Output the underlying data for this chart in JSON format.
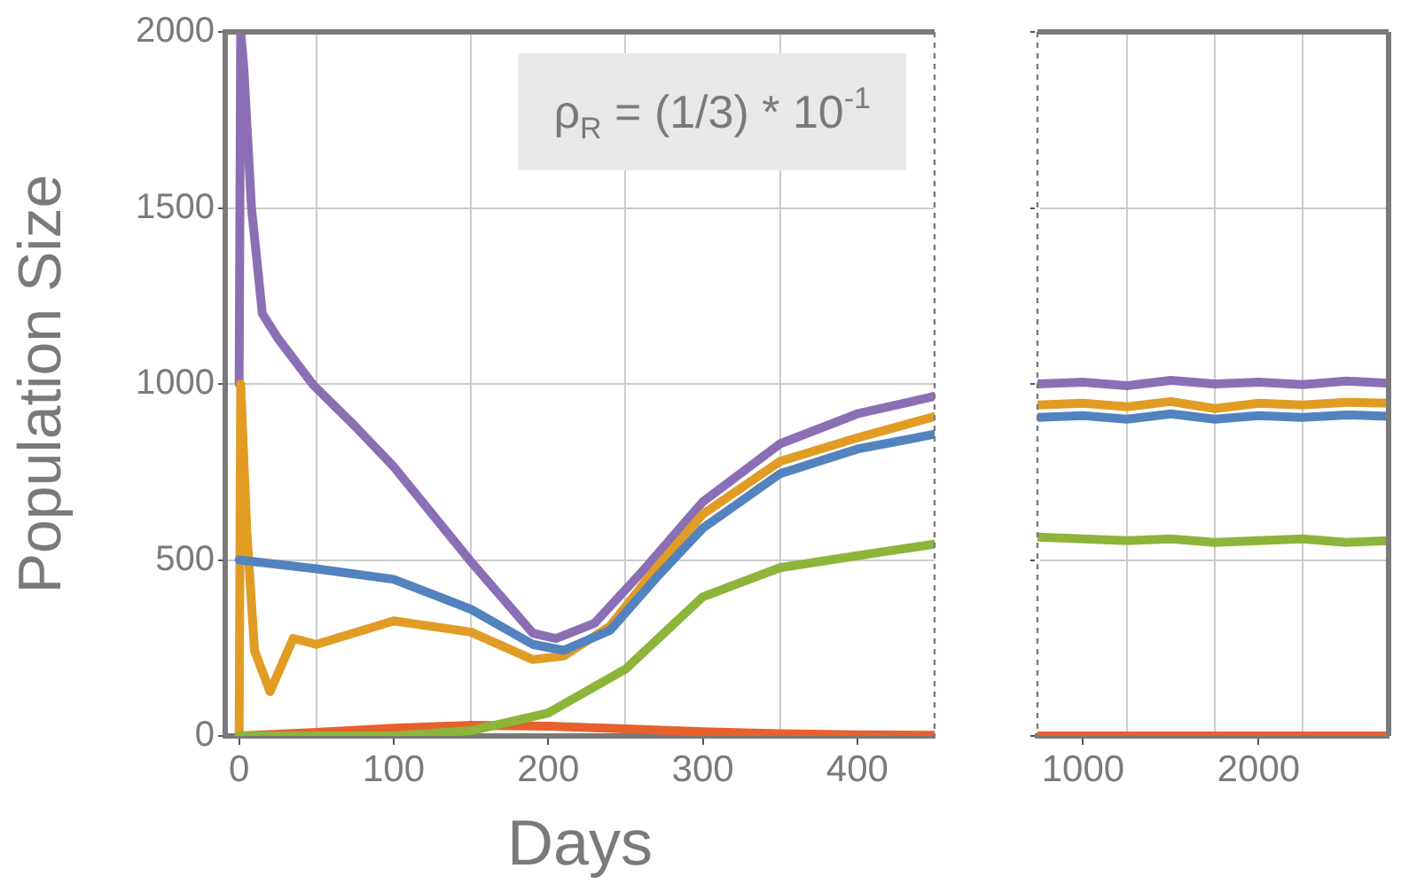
{
  "chart_data": [
    {
      "type": "line",
      "xlabel": "Days",
      "ylabel": "Population Size",
      "annotations": [
        "ρ$_{R}$ = (1/3) * 10$^{-1}$"
      ],
      "xlim": [
        -9,
        450
      ],
      "ylim": [
        0,
        2000
      ],
      "xticks": [
        0,
        {
          "value": 50,
          "label": null
        },
        100,
        {
          "value": 150,
          "label": null
        },
        200,
        {
          "value": 250,
          "label": null
        },
        300,
        {
          "value": 350,
          "label": null
        },
        400
      ],
      "yticks": [
        0,
        500,
        1000,
        1500,
        2000
      ],
      "grid": true,
      "legend": false,
      "marker": "none",
      "line_style": "solid",
      "series": [
        {
          "color": "#5283bf",
          "x": [
            0,
            50,
            100,
            150,
            190,
            210,
            240,
            270,
            300,
            350,
            400,
            450
          ],
          "values": [
            500,
            475,
            445,
            360,
            260,
            243,
            300,
            450,
            590,
            745,
            815,
            857
          ]
        },
        {
          "color": "#8cb53a",
          "x": [
            0,
            100,
            150,
            200,
            250,
            300,
            350,
            400,
            450
          ],
          "values": [
            0,
            0,
            15,
            65,
            190,
            395,
            478,
            512,
            545
          ]
        },
        {
          "color": "#e8612c",
          "x": [
            0,
            50,
            100,
            150,
            200,
            250,
            300,
            350,
            400,
            450
          ],
          "values": [
            0,
            10,
            22,
            30,
            28,
            20,
            12,
            6,
            3,
            2
          ]
        },
        {
          "color": "#e19c24",
          "x": [
            0,
            1,
            5,
            10,
            20,
            35,
            50,
            100,
            150,
            190,
            210,
            240,
            270,
            300,
            350,
            400,
            450
          ],
          "values": [
            0,
            1000,
            580,
            242,
            126,
            277,
            260,
            327,
            295,
            217,
            227,
            312,
            478,
            630,
            780,
            847,
            907
          ]
        },
        {
          "color": "#8b6fb5",
          "x": [
            0,
            1,
            3,
            8,
            15,
            25,
            48,
            75,
            100,
            150,
            190,
            205,
            230,
            260,
            300,
            350,
            400,
            450
          ],
          "values": [
            1000,
            2000,
            1900,
            1500,
            1200,
            1130,
            997,
            880,
            765,
            495,
            292,
            277,
            320,
            463,
            665,
            830,
            915,
            965
          ]
        }
      ]
    },
    {
      "type": "line",
      "xlim": [
        740,
        2740
      ],
      "ylim": [
        0,
        2000
      ],
      "xticks": [
        1000,
        {
          "value": 1250,
          "label": null
        },
        {
          "value": 1750,
          "label": null
        },
        2000,
        {
          "value": 2250,
          "label": null
        }
      ],
      "yticks": [
        0,
        500,
        1000,
        1500,
        2000
      ],
      "grid": true,
      "legend": false,
      "marker": "none",
      "line_style": "solid",
      "tick_labels": "x",
      "series": [
        {
          "color": "#5283bf",
          "x": [
            740,
            1000,
            1250,
            1500,
            1750,
            2000,
            2250,
            2500,
            2740
          ],
          "values": [
            905,
            910,
            900,
            915,
            900,
            910,
            905,
            912,
            908
          ]
        },
        {
          "color": "#8cb53a",
          "x": [
            740,
            1000,
            1250,
            1500,
            1750,
            2000,
            2250,
            2500,
            2740
          ],
          "values": [
            565,
            560,
            555,
            560,
            550,
            555,
            560,
            550,
            555
          ]
        },
        {
          "color": "#e8612c",
          "x": [
            740,
            2740
          ],
          "values": [
            0,
            0
          ]
        },
        {
          "color": "#e19c24",
          "x": [
            740,
            1000,
            1250,
            1500,
            1750,
            2000,
            2250,
            2500,
            2740
          ],
          "values": [
            940,
            945,
            935,
            950,
            930,
            945,
            940,
            948,
            945
          ]
        },
        {
          "color": "#8b6fb5",
          "x": [
            740,
            1000,
            1250,
            1500,
            1750,
            2000,
            2250,
            2500,
            2740
          ],
          "values": [
            1000,
            1005,
            995,
            1010,
            1000,
            1005,
            998,
            1008,
            1002
          ]
        }
      ]
    }
  ]
}
